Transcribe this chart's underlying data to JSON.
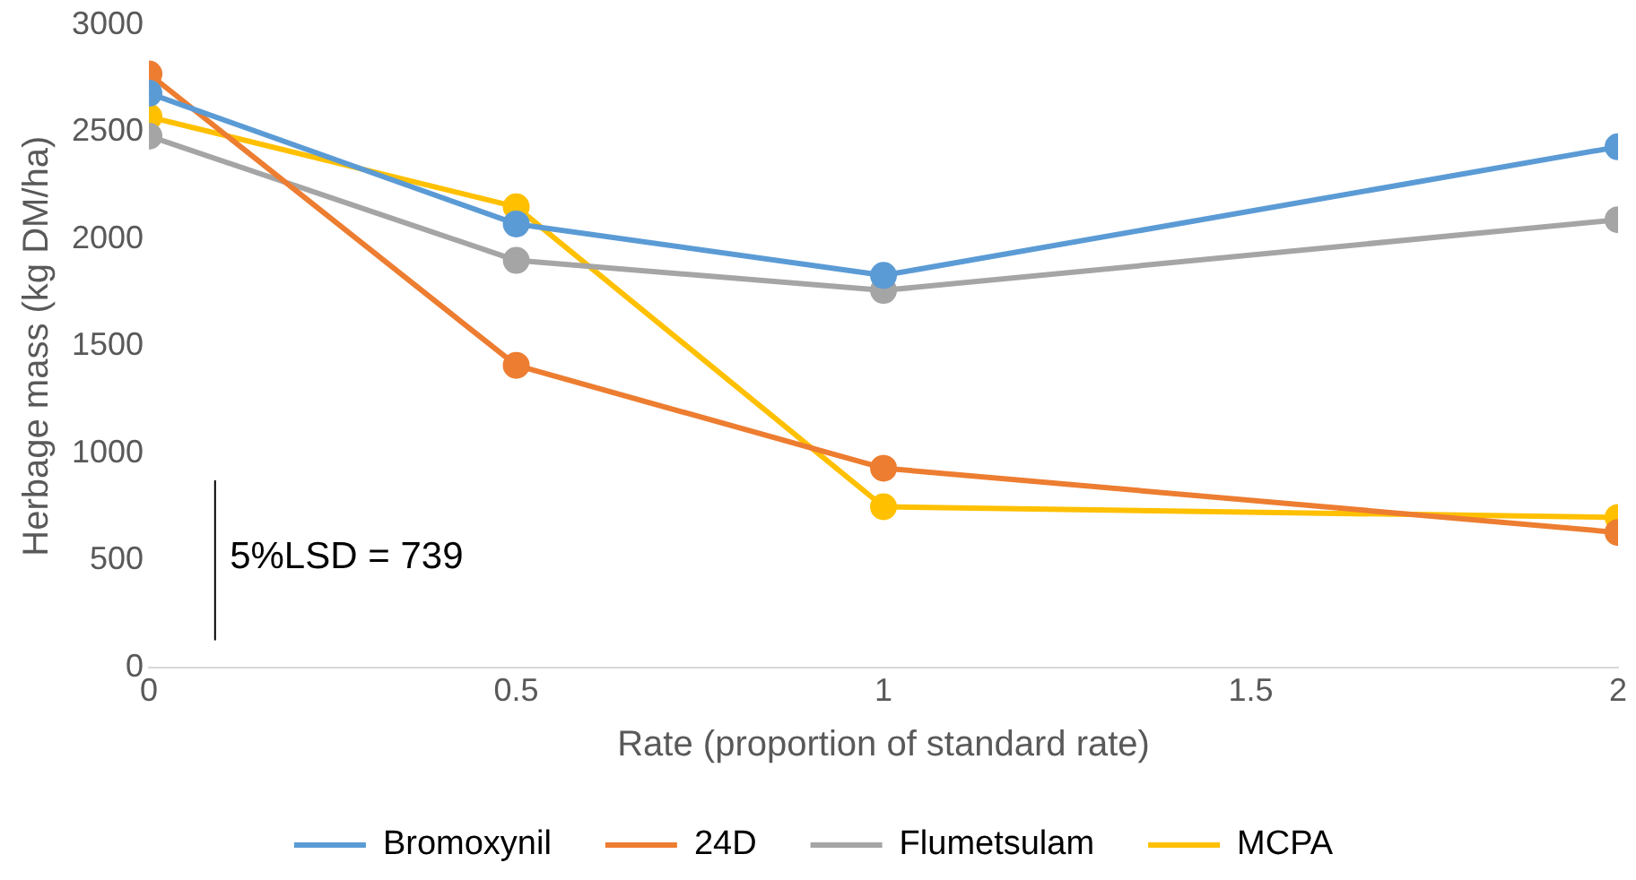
{
  "chart_data": {
    "type": "line",
    "xlabel": "Rate (proportion of standard rate)",
    "ylabel": "Herbage mass (kg DM/ha)",
    "x": [
      0,
      0.5,
      1,
      2
    ],
    "series": [
      {
        "name": "Bromoxynil",
        "color": "#5b9bd5",
        "values": [
          2680,
          2070,
          1830,
          2430
        ]
      },
      {
        "name": "24D",
        "color": "#ed7d31",
        "values": [
          2770,
          1410,
          930,
          630
        ]
      },
      {
        "name": "Flumetsulam",
        "color": "#a5a5a5",
        "values": [
          2480,
          1900,
          1760,
          2090
        ]
      },
      {
        "name": "MCPA",
        "color": "#ffc000",
        "values": [
          2570,
          2150,
          750,
          700
        ]
      },
      {
        "type": "line",
        "x": [
          0.09,
          0.09
        ],
        "color": "#000000",
        "values": [
          130,
          870
        ],
        "marker": "none"
      }
    ],
    "xlim": [
      0,
      2
    ],
    "xticks": [
      0,
      0.5,
      1,
      1.5,
      2
    ],
    "ylim": [
      0,
      3000
    ],
    "yticks": [
      0,
      500,
      1000,
      1500,
      2000,
      2500,
      3000
    ],
    "grid": false,
    "legend": "bottom",
    "marker": "circle",
    "line_style": "solid",
    "annotations": [
      "5%LSD = 739"
    ]
  }
}
